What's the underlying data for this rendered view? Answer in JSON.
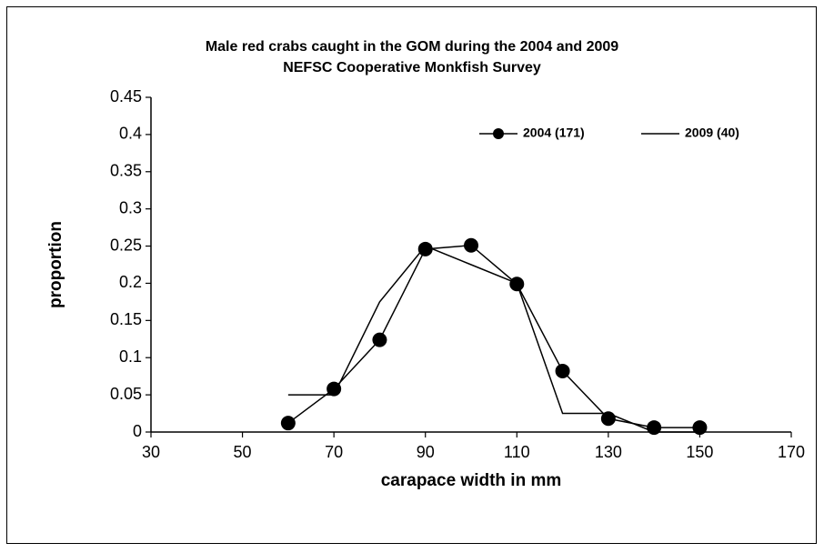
{
  "chart_data": {
    "type": "line",
    "title": [
      "Male red crabs caught in the GOM during the 2004 and 2009",
      "NEFSC Cooperative Monkfish Survey"
    ],
    "x_label": "carapace width in mm",
    "y_label": "proportion",
    "x": [
      60,
      70,
      80,
      90,
      100,
      110,
      120,
      130,
      140,
      150
    ],
    "series": [
      {
        "name": "2004 (171)",
        "color": "#000000",
        "marker": "circle",
        "values": [
          0.012,
          0.058,
          0.124,
          0.246,
          0.251,
          0.199,
          0.082,
          0.018,
          0.006,
          0.006
        ]
      },
      {
        "name": "2009 (40)",
        "color": "#000000",
        "marker": "none",
        "values": [
          0.05,
          0.05,
          0.175,
          0.25,
          0.225,
          0.2,
          0.025,
          0.025,
          0,
          0
        ]
      }
    ],
    "xlim": [
      30,
      170
    ],
    "xticks": [
      30,
      50,
      70,
      90,
      110,
      130,
      150,
      170
    ],
    "ylim": [
      0,
      0.45
    ],
    "yticks": [
      0,
      0.05,
      0.1,
      0.15,
      0.2,
      0.25,
      0.3,
      0.35,
      0.4,
      0.45
    ],
    "legend": "upper right",
    "grid": false
  }
}
